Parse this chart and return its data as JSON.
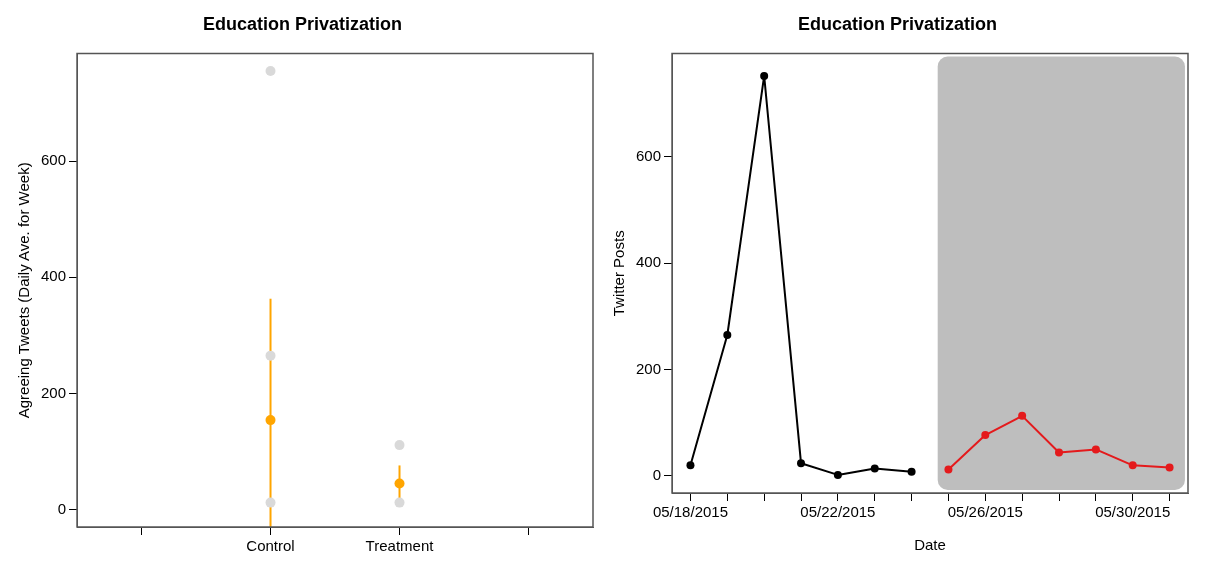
{
  "chart_data": [
    {
      "type": "scatter",
      "title": "Education Privatization",
      "ylabel": "Agreeing Tweets (Daily Ave. for Week)",
      "categories": [
        null,
        "Control",
        "Treatment",
        null
      ],
      "ylim": [
        -30,
        785
      ],
      "yticks": [
        0,
        200,
        400,
        600
      ],
      "grid": false,
      "legend": false,
      "marker": "circle",
      "series": [
        {
          "color": "#d9d9d9",
          "x": [
            "Control",
            "Control",
            "Control",
            "Treatment",
            "Treatment"
          ],
          "values": [
            755,
            265,
            12,
            111,
            12
          ]
        },
        {
          "color": "#ffa500",
          "values": [
            null,
            154,
            45,
            null
          ],
          "errors": [
            null,
            [
              -30,
              363
            ],
            [
              14,
              76
            ],
            null
          ]
        }
      ]
    },
    {
      "type": "line",
      "title": "Education Privatization",
      "xlabel": "Date",
      "ylabel": "Twitter Posts",
      "xlim": [
        "2015-05-17T12:00",
        "2015-05-31T12:00"
      ],
      "ylim": [
        -32,
        794
      ],
      "yticks": [
        0,
        200,
        400,
        600
      ],
      "grid": false,
      "legend": false,
      "marker": "circle",
      "xticks": [
        {
          "value": "2015-05-18",
          "label": "05/18/2015"
        },
        {
          "value": "2015-05-19",
          "label": null
        },
        {
          "value": "2015-05-20",
          "label": null
        },
        {
          "value": "2015-05-21",
          "label": null
        },
        {
          "value": "2015-05-22",
          "label": "05/22/2015"
        },
        {
          "value": "2015-05-23",
          "label": null
        },
        {
          "value": "2015-05-24",
          "label": null
        },
        {
          "value": "2015-05-25",
          "label": null
        },
        {
          "value": "2015-05-26",
          "label": "05/26/2015"
        },
        {
          "value": "2015-05-27",
          "label": null
        },
        {
          "value": "2015-05-28",
          "label": null
        },
        {
          "value": "2015-05-29",
          "label": null
        },
        {
          "value": "2015-05-30",
          "label": "05/30/2015"
        },
        {
          "value": "2015-05-31",
          "label": null
        }
      ],
      "bands": [
        {
          "axis": "x",
          "from": "2015-05-24T17:00",
          "to": "2015-05-31T10:00",
          "color": "#bebebe"
        }
      ],
      "series": [
        {
          "color": "#000000",
          "x": [
            "2015-05-18",
            "2015-05-19",
            "2015-05-20",
            "2015-05-21",
            "2015-05-22",
            "2015-05-23",
            "2015-05-24"
          ],
          "values": [
            20,
            265,
            752,
            24,
            2,
            14,
            8
          ]
        },
        {
          "color": "#e41a1c",
          "x": [
            "2015-05-25",
            "2015-05-26",
            "2015-05-27",
            "2015-05-28",
            "2015-05-29",
            "2015-05-30",
            "2015-05-31"
          ],
          "values": [
            12,
            77,
            113,
            44,
            50,
            20,
            16
          ]
        }
      ]
    }
  ]
}
